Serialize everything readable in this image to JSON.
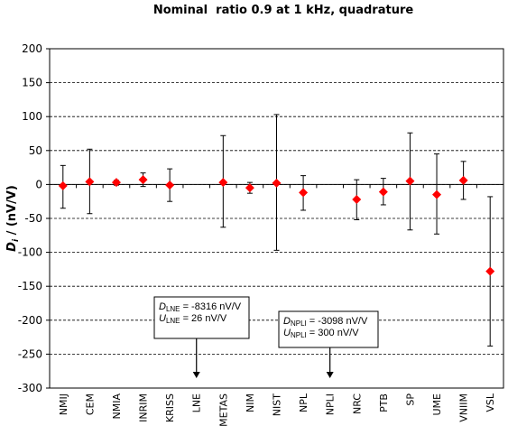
{
  "chart_data": {
    "type": "scatter",
    "title": "Nominal  ratio 0.9 at 1 kHz, quadrature",
    "ylabel_sym": "D",
    "ylabel_sub": "i",
    "ylabel_rest": " / (nV/V)",
    "xlabel": "",
    "ylim": [
      -300,
      200
    ],
    "yticks": [
      200,
      150,
      100,
      50,
      0,
      -50,
      -100,
      -150,
      -200,
      -250,
      -300
    ],
    "grid": "horizontal dashed",
    "marker": "diamond",
    "marker_color": "#ff0000",
    "categories": [
      "NMIJ",
      "CEM",
      "NMIA",
      "INRIM",
      "KRISS",
      "LNE",
      "METAS",
      "NIM",
      "NIST",
      "NPL",
      "NPLI",
      "NRC",
      "PTB",
      "SP",
      "UME",
      "VNIIM",
      "VSL"
    ],
    "series": [
      {
        "values": [
          -2,
          4,
          3,
          7,
          -1,
          null,
          3,
          -5,
          2,
          -12,
          null,
          -22,
          -11,
          5,
          -15,
          6,
          -128
        ],
        "err_low": [
          -35,
          -43,
          -1,
          -3,
          -25,
          null,
          -63,
          -13,
          -97,
          -38,
          null,
          -52,
          -30,
          -67,
          -73,
          -22,
          -238
        ],
        "err_high": [
          28,
          52,
          6,
          17,
          23,
          null,
          72,
          3,
          103,
          13,
          null,
          7,
          9,
          76,
          45,
          34,
          -18
        ]
      }
    ],
    "annotations": [
      {
        "category": "LNE",
        "d_sym": "D",
        "d_sub": "LNE",
        "d_text": " = -8316 nV/V",
        "u_sym": "U",
        "u_sub": "LNE",
        "u_text": " = 26 nV/V"
      },
      {
        "category": "NPLI",
        "d_sym": "D",
        "d_sub": "NPLI",
        "d_text": " = -3098 nV/V",
        "u_sym": "U",
        "u_sub": "NPLI",
        "u_text": " = 300 nV/V"
      }
    ]
  }
}
